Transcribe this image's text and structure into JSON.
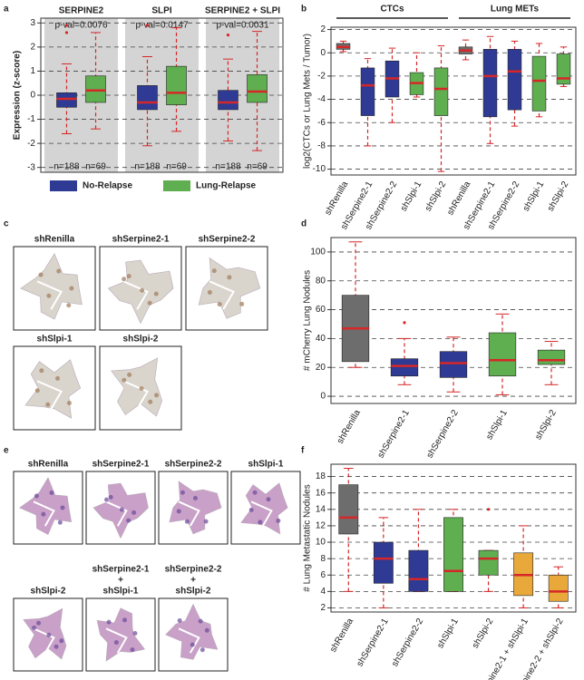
{
  "chart_data": [
    {
      "type": "box",
      "panel": "a",
      "y_label": "Expression (z-score)",
      "categories": [
        "SERPINE2",
        "SLPI",
        "SERPINE2 + SLPI"
      ],
      "annotations": [
        "p-val=0.0076",
        "p-val=0.0147",
        "p-val=0.0031"
      ],
      "ylim": [
        -3.2,
        3.2
      ],
      "yticks": [
        -3,
        -2,
        -1,
        0,
        1,
        2,
        3
      ],
      "grid": true,
      "legend": "bottom",
      "series": [
        {
          "name": "No-Relapse",
          "color": "#2e3a94",
          "n_labels": [
            "n=188",
            "n=188",
            "n=188"
          ],
          "boxes": [
            {
              "min": -1.6,
              "q1": -0.5,
              "median": -0.15,
              "q3": 0.1,
              "max": 1.3,
              "outliers": [
                2.6,
                2.9
              ]
            },
            {
              "min": -2.1,
              "q1": -0.6,
              "median": -0.3,
              "q3": 0.4,
              "max": 1.6,
              "outliers": [
                2.9
              ]
            },
            {
              "min": -1.9,
              "q1": -0.6,
              "median": -0.3,
              "q3": 0.2,
              "max": 1.5,
              "outliers": [
                2.5
              ]
            }
          ]
        },
        {
          "name": "Lung-Relapse",
          "color": "#5fae4f",
          "n_labels": [
            "n=69",
            "n=69",
            "n=69"
          ],
          "boxes": [
            {
              "min": -1.4,
              "q1": -0.3,
              "median": 0.2,
              "q3": 0.8,
              "max": 2.6
            },
            {
              "min": -1.5,
              "q1": -0.4,
              "median": 0.1,
              "q3": 1.2,
              "max": 2.8
            },
            {
              "min": -2.3,
              "q1": -0.3,
              "median": 0.15,
              "q3": 0.85,
              "max": 2.65
            }
          ]
        }
      ]
    },
    {
      "type": "box",
      "panel": "b",
      "y_label": "log2(CTCs or Lung Mets / Tumor)",
      "categories": [
        "shRenilla",
        "shSerpine2-1",
        "shSerpine2-2",
        "shSlpi-1",
        "shSlpi-2"
      ],
      "colors": [
        "#6d6d6d",
        "#2e3a94",
        "#2e3a94",
        "#5fae4f",
        "#5fae4f"
      ],
      "ylim": [
        -10.5,
        2.2
      ],
      "yticks": [
        2,
        0,
        -2,
        -4,
        -6,
        -8,
        -10
      ],
      "grid": true,
      "series": [
        {
          "name": "CTCs",
          "boxes": [
            {
              "min": 0.1,
              "q1": 0.3,
              "median": 0.5,
              "q3": 0.8,
              "max": 1.0
            },
            {
              "min": -8,
              "q1": -5.4,
              "median": -2.8,
              "q3": -1.3,
              "max": -0.5
            },
            {
              "min": -6,
              "q1": -3.8,
              "median": -2.2,
              "q3": -0.7,
              "max": 0.4
            },
            {
              "min": -3.8,
              "q1": -3.6,
              "median": -2.6,
              "q3": -1.7,
              "max": 0
            },
            {
              "min": -10.2,
              "q1": -5.4,
              "median": -3.1,
              "q3": -1.3,
              "max": 0.6
            }
          ]
        },
        {
          "name": "Lung METs",
          "boxes": [
            {
              "min": -0.6,
              "q1": -0.1,
              "median": 0.2,
              "q3": 0.5,
              "max": 1.1
            },
            {
              "min": -7.8,
              "q1": -5.5,
              "median": -2,
              "q3": 0.3,
              "max": 1.4
            },
            {
              "min": -6.3,
              "q1": -4.9,
              "median": -1.6,
              "q3": 0.3,
              "max": 1
            },
            {
              "min": -5.5,
              "q1": -5,
              "median": -2.4,
              "q3": -0.3,
              "max": 0.8
            },
            {
              "min": -2.9,
              "q1": -2.7,
              "median": -2.2,
              "q3": -0.1,
              "max": 0.5
            }
          ]
        }
      ]
    },
    {
      "type": "box",
      "panel": "d",
      "y_label": "# mCherry Lung Nodules",
      "categories": [
        "shRenilla",
        "shSerpine2-1",
        "shSerpine2-2",
        "shSlpi-1",
        "shSlpi-2"
      ],
      "colors": [
        "#6d6d6d",
        "#2e3a94",
        "#2e3a94",
        "#5fae4f",
        "#5fae4f"
      ],
      "ylim": [
        -5,
        110
      ],
      "yticks": [
        0,
        20,
        40,
        60,
        80,
        100
      ],
      "grid": true,
      "series": [
        {
          "boxes": [
            {
              "min": 20,
              "q1": 24,
              "median": 47,
              "q3": 70,
              "max": 107
            },
            {
              "min": 8,
              "q1": 14,
              "median": 21,
              "q3": 26,
              "max": 40,
              "outliers": [
                51
              ]
            },
            {
              "min": 3,
              "q1": 13,
              "median": 23,
              "q3": 31,
              "max": 41
            },
            {
              "min": 1,
              "q1": 14,
              "median": 25,
              "q3": 44,
              "max": 57
            },
            {
              "min": 8,
              "q1": 22,
              "median": 25,
              "q3": 32,
              "max": 38
            }
          ]
        }
      ]
    },
    {
      "type": "box",
      "panel": "f",
      "y_label": "# Lung Metastatic Nodules",
      "categories": [
        "shRenilla",
        "shSerpine2-1",
        "shSerpine2-2",
        "shSlpi-1",
        "shSlpi-2",
        "shSerpine2-1 + shSlpi-1",
        "shSerpine2-2 + shSlpi-2"
      ],
      "colors": [
        "#6d6d6d",
        "#2e3a94",
        "#2e3a94",
        "#5fae4f",
        "#5fae4f",
        "#e8a93a",
        "#e8a93a"
      ],
      "ylim": [
        1.5,
        19.5
      ],
      "yticks": [
        2,
        4,
        6,
        8,
        10,
        12,
        14,
        16,
        18
      ],
      "grid": true,
      "series": [
        {
          "boxes": [
            {
              "min": 4,
              "q1": 11,
              "median": 13,
              "q3": 17,
              "max": 19
            },
            {
              "min": 2,
              "q1": 5,
              "median": 8,
              "q3": 10,
              "max": 13
            },
            {
              "min": 4,
              "q1": 4,
              "median": 5.5,
              "q3": 9,
              "max": 14
            },
            {
              "min": 4,
              "q1": 4,
              "median": 6.5,
              "q3": 13,
              "max": 14
            },
            {
              "min": 4,
              "q1": 6,
              "median": 8,
              "q3": 9,
              "max": 9,
              "outliers": [
                14
              ]
            },
            {
              "min": 2,
              "q1": 3.5,
              "median": 6,
              "q3": 8.7,
              "max": 12
            },
            {
              "min": 2,
              "q1": 2.8,
              "median": 4,
              "q3": 6,
              "max": 7
            }
          ]
        }
      ]
    }
  ],
  "image_panels": [
    {
      "panel": "c",
      "images": [
        {
          "label_lines": [
            "shRenilla"
          ]
        },
        {
          "label_lines": [
            "shSerpine2-1"
          ]
        },
        {
          "label_lines": [
            "shSerpine2-2"
          ]
        },
        {
          "label_lines": [
            "shSlpi-1"
          ]
        },
        {
          "label_lines": [
            "shSlpi-2"
          ]
        }
      ]
    },
    {
      "panel": "e",
      "images": [
        {
          "label_lines": [
            "shRenilla"
          ]
        },
        {
          "label_lines": [
            "shSerpine2-1"
          ]
        },
        {
          "label_lines": [
            "shSerpine2-2"
          ]
        },
        {
          "label_lines": [
            "shSlpi-1"
          ]
        },
        {
          "label_lines": [
            "shSlpi-2"
          ]
        },
        {
          "label_lines": [
            "shSerpine2-1",
            "+",
            "shSlpi-1"
          ]
        },
        {
          "label_lines": [
            "shSerpine2-2",
            "+",
            "shSlpi-2"
          ]
        }
      ]
    }
  ]
}
